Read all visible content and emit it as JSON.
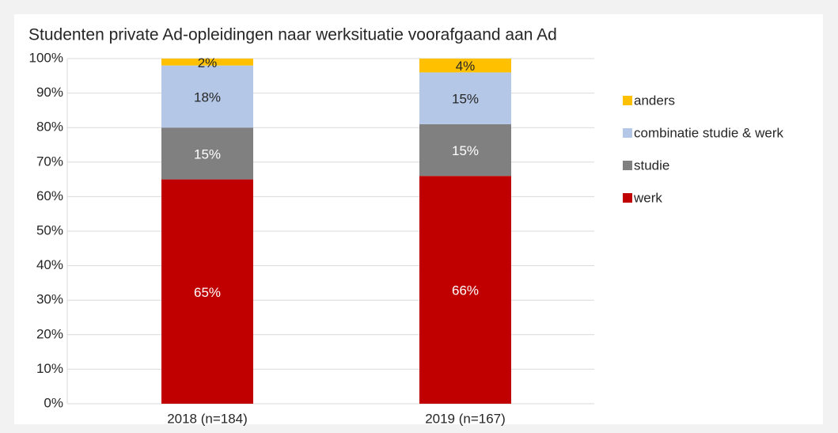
{
  "chart_data": {
    "type": "stacked_bar",
    "title": "Studenten private Ad-opleidingen naar werksituatie voorafgaand aan Ad",
    "categories": [
      "2018 (n=184)",
      "2019 (n=167)"
    ],
    "series": [
      {
        "name": "werk",
        "color": "#c00000",
        "values": [
          65,
          66
        ],
        "value_labels": [
          "65%",
          "66%"
        ]
      },
      {
        "name": "studie",
        "color": "#808080",
        "values": [
          15,
          15
        ],
        "value_labels": [
          "15%",
          "15%"
        ]
      },
      {
        "name": "combinatie studie & werk",
        "color": "#b4c7e7",
        "values": [
          18,
          15
        ],
        "value_labels": [
          "18%",
          "15%"
        ]
      },
      {
        "name": "anders",
        "color": "#ffc000",
        "values": [
          2,
          4
        ],
        "value_labels": [
          "2%",
          "4%"
        ]
      }
    ],
    "ylim": [
      0,
      100
    ],
    "yticks": [
      {
        "value": 0,
        "label": "0%"
      },
      {
        "value": 10,
        "label": "10%"
      },
      {
        "value": 20,
        "label": "20%"
      },
      {
        "value": 30,
        "label": "30%"
      },
      {
        "value": 40,
        "label": "40%"
      },
      {
        "value": 50,
        "label": "50%"
      },
      {
        "value": 60,
        "label": "60%"
      },
      {
        "value": 70,
        "label": "70%"
      },
      {
        "value": 80,
        "label": "80%"
      },
      {
        "value": 90,
        "label": "90%"
      },
      {
        "value": 100,
        "label": "100%"
      }
    ],
    "grid": true,
    "legend": "right"
  }
}
